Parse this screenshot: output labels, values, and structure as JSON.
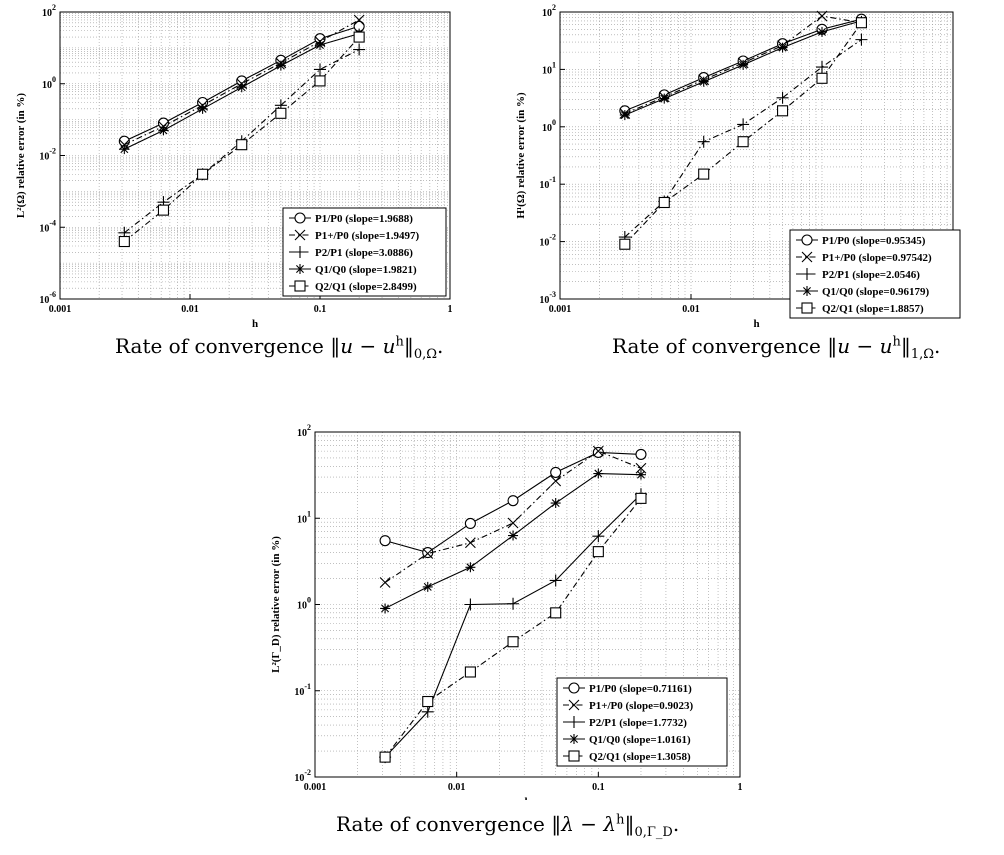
{
  "chart_data": [
    {
      "type": "line",
      "xscale": "log",
      "yscale": "log",
      "xlabel": "h",
      "ylabel": "L²(Ω) relative error (in %)",
      "xlim": [
        0.001,
        1
      ],
      "ylim": [
        1e-06,
        100
      ],
      "xticks": [
        {
          "v": 0.001,
          "label": "0.001"
        },
        {
          "v": 0.01,
          "label": "0.01"
        },
        {
          "v": 0.1,
          "label": "0.1"
        },
        {
          "v": 1,
          "label": "1"
        }
      ],
      "yticks": [
        {
          "v": 1e-06,
          "base": "10",
          "exp": "-6"
        },
        {
          "v": 0.0001,
          "base": "10",
          "exp": "-4"
        },
        {
          "v": 0.01,
          "base": "10",
          "exp": "-2"
        },
        {
          "v": 1,
          "base": "10",
          "exp": "0"
        },
        {
          "v": 100,
          "base": "10",
          "exp": "2"
        }
      ],
      "grid": true,
      "legend_position": "bottom-right",
      "x": [
        0.003125,
        0.00625,
        0.0125,
        0.025,
        0.05,
        0.1,
        0.2
      ],
      "series": [
        {
          "name": "P1/P0",
          "slope_text": "(slope=1.9688)",
          "marker": "circle",
          "dash": "solid",
          "x": [
            0.003125,
            0.00625,
            0.0125,
            0.025,
            0.05,
            0.1,
            0.2
          ],
          "values": [
            0.025,
            0.08,
            0.3,
            1.2,
            4.5,
            18,
            40
          ]
        },
        {
          "name": "P1+/P0",
          "slope_text": "(slope=1.9497)",
          "marker": "x",
          "dash": "dashdot",
          "x": [
            0.003125,
            0.00625,
            0.0125,
            0.025,
            0.05,
            0.1,
            0.2
          ],
          "values": [
            0.02,
            0.065,
            0.25,
            1.0,
            3.8,
            15,
            60
          ]
        },
        {
          "name": "P2/P1",
          "slope_text": "(slope=3.0886)",
          "marker": "plus",
          "dash": "dashdot",
          "x": [
            0.003125,
            0.00625,
            0.0125,
            0.025,
            0.05,
            0.1,
            0.2
          ],
          "values": [
            7e-05,
            0.0005,
            0.003,
            0.025,
            0.25,
            2.5,
            9
          ]
        },
        {
          "name": "Q1/Q0",
          "slope_text": "(slope=1.9821)",
          "marker": "asterisk",
          "dash": "solid",
          "x": [
            0.003125,
            0.00625,
            0.0125,
            0.025,
            0.05,
            0.1,
            0.2
          ],
          "values": [
            0.015,
            0.05,
            0.2,
            0.8,
            3.2,
            12,
            25
          ]
        },
        {
          "name": "Q2/Q1",
          "slope_text": "(slope=2.8499)",
          "marker": "square",
          "dash": "dashdot",
          "x": [
            0.003125,
            0.00625,
            0.0125,
            0.025,
            0.05,
            0.1,
            0.2
          ],
          "values": [
            4e-05,
            0.0003,
            0.003,
            0.02,
            0.15,
            1.2,
            20
          ]
        }
      ]
    },
    {
      "type": "line",
      "xscale": "log",
      "yscale": "log",
      "xlabel": "h",
      "ylabel": "H¹(Ω) relative error (in %)",
      "xlim": [
        0.001,
        1
      ],
      "ylim": [
        0.001,
        100
      ],
      "xticks": [
        {
          "v": 0.001,
          "label": "0.001"
        },
        {
          "v": 0.01,
          "label": "0.01"
        },
        {
          "v": 0.1,
          "label": "0.1"
        },
        {
          "v": 1,
          "label": "1"
        }
      ],
      "yticks": [
        {
          "v": 0.001,
          "base": "10",
          "exp": "-3"
        },
        {
          "v": 0.01,
          "base": "10",
          "exp": "-2"
        },
        {
          "v": 0.1,
          "base": "10",
          "exp": "-1"
        },
        {
          "v": 1,
          "base": "10",
          "exp": "0"
        },
        {
          "v": 10,
          "base": "10",
          "exp": "1"
        },
        {
          "v": 100,
          "base": "10",
          "exp": "2"
        }
      ],
      "grid": true,
      "legend_position": "bottom-right",
      "series": [
        {
          "name": "P1/P0",
          "slope_text": "(slope=0.95345)",
          "marker": "circle",
          "dash": "solid",
          "x": [
            0.003125,
            0.00625,
            0.0125,
            0.025,
            0.05,
            0.1,
            0.2
          ],
          "values": [
            1.9,
            3.6,
            7.2,
            14,
            28,
            50,
            75
          ]
        },
        {
          "name": "P1+/P0",
          "slope_text": "(slope=0.97542)",
          "marker": "x",
          "dash": "dashdot",
          "x": [
            0.003125,
            0.00625,
            0.0125,
            0.025,
            0.05,
            0.1,
            0.2
          ],
          "values": [
            1.7,
            3.3,
            6.6,
            13,
            26,
            85,
            65
          ]
        },
        {
          "name": "P2/P1",
          "slope_text": "(slope=2.0546)",
          "marker": "plus",
          "dash": "dashdot",
          "x": [
            0.003125,
            0.00625,
            0.0125,
            0.025,
            0.05,
            0.1,
            0.2
          ],
          "values": [
            0.012,
            0.05,
            0.55,
            1.1,
            3.2,
            11,
            33
          ]
        },
        {
          "name": "Q1/Q0",
          "slope_text": "(slope=0.96179)",
          "marker": "asterisk",
          "dash": "solid",
          "x": [
            0.003125,
            0.00625,
            0.0125,
            0.025,
            0.05,
            0.1,
            0.2
          ],
          "values": [
            1.6,
            3.1,
            6.1,
            12,
            24,
            45,
            70
          ]
        },
        {
          "name": "Q2/Q1",
          "slope_text": "(slope=1.8857)",
          "marker": "square",
          "dash": "dashdot",
          "x": [
            0.003125,
            0.00625,
            0.0125,
            0.025,
            0.05,
            0.1,
            0.2
          ],
          "values": [
            0.009,
            0.048,
            0.15,
            0.55,
            1.9,
            7,
            65
          ]
        }
      ]
    },
    {
      "type": "line",
      "xscale": "log",
      "yscale": "log",
      "xlabel": "h",
      "ylabel": "L²(Γ_D) relative error (in %)",
      "xlim": [
        0.001,
        1
      ],
      "ylim": [
        0.01,
        100
      ],
      "xticks": [
        {
          "v": 0.001,
          "label": "0.001"
        },
        {
          "v": 0.01,
          "label": "0.01"
        },
        {
          "v": 0.1,
          "label": "0.1"
        },
        {
          "v": 1,
          "label": "1"
        }
      ],
      "yticks": [
        {
          "v": 0.01,
          "base": "10",
          "exp": "-2"
        },
        {
          "v": 0.1,
          "base": "10",
          "exp": "-1"
        },
        {
          "v": 1,
          "base": "10",
          "exp": "0"
        },
        {
          "v": 10,
          "base": "10",
          "exp": "1"
        },
        {
          "v": 100,
          "base": "10",
          "exp": "2"
        }
      ],
      "grid": true,
      "legend_position": "bottom-right",
      "series": [
        {
          "name": "P1/P0",
          "slope_text": "(slope=0.71161)",
          "marker": "circle",
          "dash": "solid",
          "x": [
            0.003125,
            0.00625,
            0.0125,
            0.025,
            0.05,
            0.1,
            0.2
          ],
          "values": [
            5.5,
            4.0,
            8.7,
            16,
            34,
            58,
            55
          ]
        },
        {
          "name": "P1+/P0",
          "slope_text": "(slope=0.9023)",
          "marker": "x",
          "dash": "dashdot",
          "x": [
            0.003125,
            0.00625,
            0.0125,
            0.025,
            0.05,
            0.1,
            0.2
          ],
          "values": [
            1.8,
            3.9,
            5.2,
            8.8,
            27,
            60,
            38
          ]
        },
        {
          "name": "P2/P1",
          "slope_text": "(slope=1.7732)",
          "marker": "plus",
          "dash": "solid",
          "x": [
            0.003125,
            0.00625,
            0.0125,
            0.025,
            0.05,
            0.1,
            0.2
          ],
          "values": [
            0.017,
            0.057,
            1.0,
            1.02,
            1.9,
            6.2,
            19
          ]
        },
        {
          "name": "Q1/Q0",
          "slope_text": "(slope=1.0161)",
          "marker": "asterisk",
          "dash": "solid",
          "x": [
            0.003125,
            0.00625,
            0.0125,
            0.025,
            0.05,
            0.1,
            0.2
          ],
          "values": [
            0.9,
            1.6,
            2.7,
            6.3,
            15,
            33,
            32
          ]
        },
        {
          "name": "Q2/Q1",
          "slope_text": "(slope=1.3058)",
          "marker": "square",
          "dash": "dashdot",
          "x": [
            0.003125,
            0.00625,
            0.0125,
            0.025,
            0.05,
            0.1,
            0.2
          ],
          "values": [
            0.017,
            0.075,
            0.165,
            0.37,
            0.8,
            4.1,
            17
          ]
        }
      ]
    }
  ],
  "captions": [
    {
      "prefix": "Rate of convergence ",
      "norm_open": "‖",
      "var": "u",
      "minus": " − ",
      "var_h": "u",
      "sup": "h",
      "norm_close": "‖",
      "sub": "0,Ω",
      "suffix": "."
    },
    {
      "prefix": "Rate of convergence ",
      "norm_open": "‖",
      "var": "u",
      "minus": " − ",
      "var_h": "u",
      "sup": "h",
      "norm_close": "‖",
      "sub": "1,Ω",
      "suffix": "."
    },
    {
      "prefix": "Rate of convergence ",
      "norm_open": "‖",
      "var": "λ",
      "minus": " − ",
      "var_h": "λ",
      "sup": "h",
      "norm_close": "‖",
      "sub": "0,Γ_D",
      "suffix": "."
    }
  ]
}
